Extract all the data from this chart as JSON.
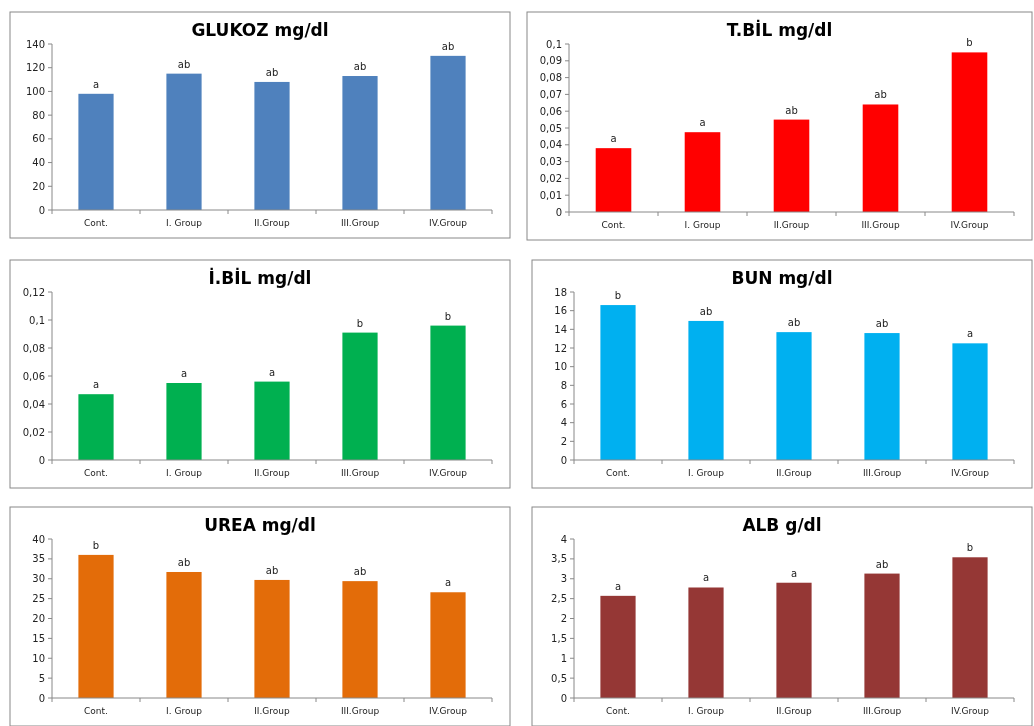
{
  "chart_data": [
    {
      "type": "bar",
      "title": "GLUKOZ mg/dl",
      "categories": [
        "Cont.",
        "I. Group",
        "II.Group",
        "III.Group",
        "IV.Group"
      ],
      "values": [
        98,
        115,
        108,
        113,
        130
      ],
      "value_labels": [
        "a",
        "ab",
        "ab",
        "ab",
        "ab"
      ],
      "color": "#4f81bd",
      "ylim": [
        0,
        140
      ],
      "yticks": [
        0,
        20,
        40,
        60,
        80,
        100,
        120,
        140
      ],
      "grid": false
    },
    {
      "type": "bar",
      "title": "T.BİL mg/dl",
      "categories": [
        "Cont.",
        "I. Group",
        "II.Group",
        "III.Group",
        "IV.Group"
      ],
      "values": [
        0.038,
        0.0475,
        0.055,
        0.064,
        0.095
      ],
      "value_labels": [
        "a",
        "a",
        "ab",
        "ab",
        "b"
      ],
      "color": "#ff0000",
      "ylim": [
        0,
        0.1
      ],
      "yticks": [
        0,
        {
          "value": 0.01,
          "label": "0,01"
        },
        {
          "value": 0.02,
          "label": "0,02"
        },
        {
          "value": 0.03,
          "label": "0,03"
        },
        {
          "value": 0.04,
          "label": "0,04"
        },
        {
          "value": 0.05,
          "label": "0,05"
        },
        {
          "value": 0.06,
          "label": "0,06"
        },
        {
          "value": 0.07,
          "label": "0,07"
        },
        {
          "value": 0.08,
          "label": "0,08"
        },
        {
          "value": 0.09,
          "label": "0,09"
        },
        {
          "value": 0.1,
          "label": "0,1"
        }
      ],
      "grid": false
    },
    {
      "type": "bar",
      "title": "İ.BİL mg/dl",
      "categories": [
        "Cont.",
        "I. Group",
        "II.Group",
        "III.Group",
        "IV.Group"
      ],
      "values": [
        0.047,
        0.055,
        0.056,
        0.091,
        0.096
      ],
      "value_labels": [
        "a",
        "a",
        "a",
        "b",
        "b"
      ],
      "color": "#00b050",
      "ylim": [
        0,
        0.12
      ],
      "yticks": [
        0,
        {
          "value": 0.02,
          "label": "0,02"
        },
        {
          "value": 0.04,
          "label": "0,04"
        },
        {
          "value": 0.06,
          "label": "0,06"
        },
        {
          "value": 0.08,
          "label": "0,08"
        },
        {
          "value": 0.1,
          "label": "0,1"
        },
        {
          "value": 0.12,
          "label": "0,12"
        }
      ],
      "grid": false
    },
    {
      "type": "bar",
      "title": "BUN mg/dl",
      "categories": [
        "Cont.",
        "I. Group",
        "II.Group",
        "III.Group",
        "IV.Group"
      ],
      "values": [
        16.6,
        14.9,
        13.7,
        13.6,
        12.5
      ],
      "value_labels": [
        "b",
        "ab",
        "ab",
        "ab",
        "a"
      ],
      "color": "#00b0f0",
      "ylim": [
        0,
        18
      ],
      "yticks": [
        0,
        2,
        4,
        6,
        8,
        10,
        12,
        14,
        16,
        18
      ],
      "grid": false
    },
    {
      "type": "bar",
      "title": "UREA mg/dl",
      "categories": [
        "Cont.",
        "I. Group",
        "II.Group",
        "III.Group",
        "IV.Group"
      ],
      "values": [
        36,
        31.7,
        29.7,
        29.4,
        26.6
      ],
      "value_labels": [
        "b",
        "ab",
        "ab",
        "ab",
        "a"
      ],
      "color": "#e36c09",
      "ylim": [
        0,
        40
      ],
      "yticks": [
        0,
        5,
        10,
        15,
        20,
        25,
        30,
        35,
        40
      ],
      "grid": false
    },
    {
      "type": "bar",
      "title": "ALB g/dl",
      "categories": [
        "Cont.",
        "I. Group",
        "II.Group",
        "III.Group",
        "IV.Group"
      ],
      "values": [
        2.57,
        2.78,
        2.9,
        3.13,
        3.54
      ],
      "value_labels": [
        "a",
        "a",
        "a",
        "ab",
        "b"
      ],
      "color": "#953735",
      "ylim": [
        0,
        4
      ],
      "yticks": [
        0,
        {
          "value": 0.5,
          "label": "0,5"
        },
        1,
        {
          "value": 1.5,
          "label": "1,5"
        },
        2,
        {
          "value": 2.5,
          "label": "2,5"
        },
        3,
        {
          "value": 3.5,
          "label": "3,5"
        },
        4
      ],
      "grid": false
    }
  ]
}
